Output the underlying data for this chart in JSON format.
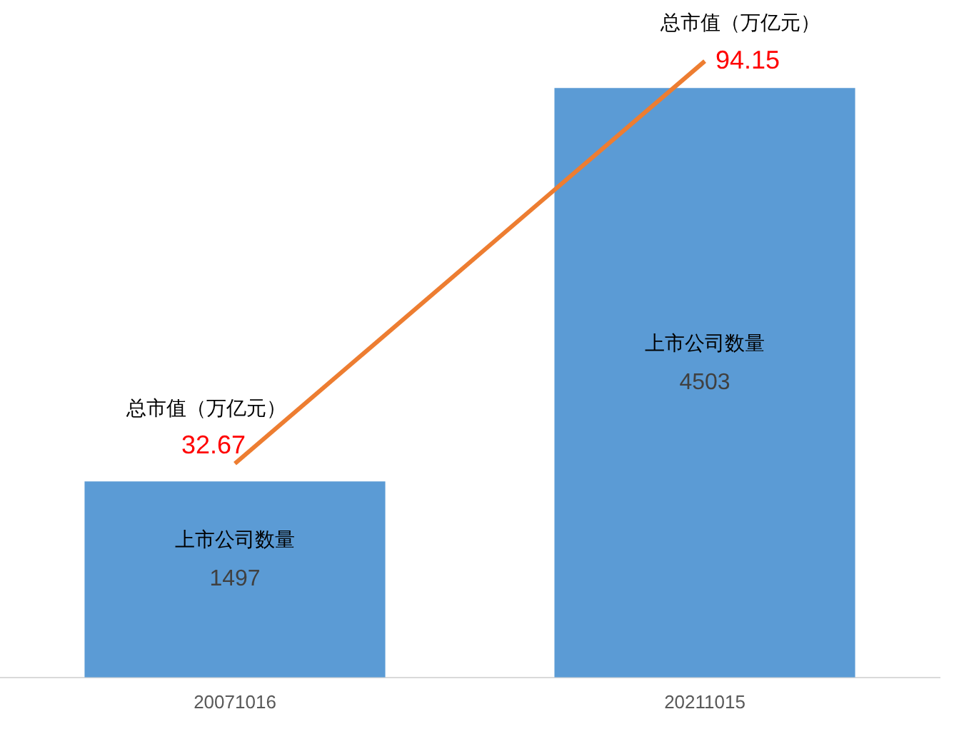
{
  "chart_data": {
    "type": "bar",
    "categories": [
      "20071016",
      "20211015"
    ],
    "series": [
      {
        "name": "上市公司数量",
        "color": "#5b9bd5",
        "values": [
          1497,
          4503
        ]
      },
      {
        "name": "总市值（万亿元）",
        "type": "line",
        "axis": "y2",
        "color": "#ed7d31",
        "values": [
          32.67,
          94.15
        ]
      }
    ],
    "tick_labels": "x",
    "grid": false,
    "legend": false,
    "data_labels": true
  }
}
